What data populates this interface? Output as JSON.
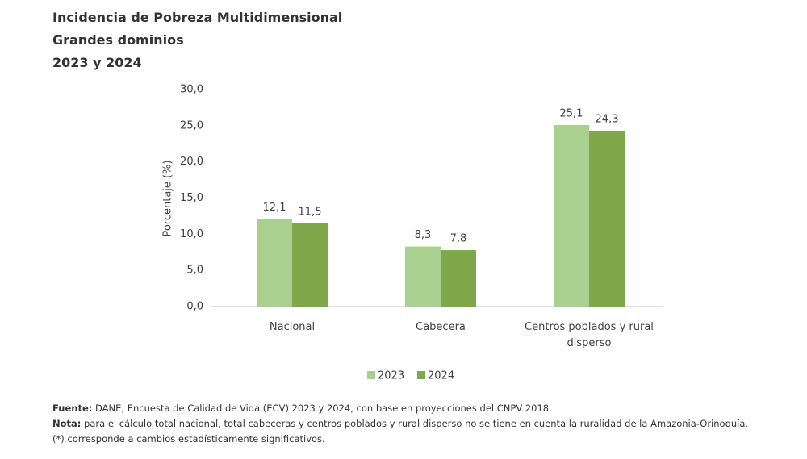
{
  "chart_data": {
    "type": "bar",
    "title": "Incidencia de Pobreza Multidimensional",
    "subtitle": [
      "Grandes dominios",
      "2023 y 2024"
    ],
    "ylabel": "Porcentaje (%)",
    "categories": [
      "Nacional",
      "Cabecera",
      "Centros poblados y rural disperso"
    ],
    "series": [
      {
        "name": "2023",
        "color": "#a9d08e",
        "values": [
          12.1,
          8.3,
          25.1
        ],
        "value_labels": [
          "12,1",
          "8,3",
          "25,1"
        ]
      },
      {
        "name": "2024",
        "color": "#7ea84a",
        "values": [
          11.5,
          7.8,
          24.3
        ],
        "value_labels": [
          "11,5",
          "7,8",
          "24,3"
        ]
      }
    ],
    "ylim": [
      0,
      30
    ],
    "yticks": [
      {
        "value": 0,
        "label": "0,0"
      },
      {
        "value": 5,
        "label": "5,0"
      },
      {
        "value": 10,
        "label": "10,0"
      },
      {
        "value": 15,
        "label": "15,0"
      },
      {
        "value": 20,
        "label": "20,0"
      },
      {
        "value": 25,
        "label": "25,0"
      },
      {
        "value": 30,
        "label": "30,0"
      }
    ],
    "grid": false,
    "legend": "bottom",
    "notes": [
      {
        "label": "Fuente:",
        "text": "DANE, Encuesta de Calidad de Vida (ECV) 2023 y 2024, con base en proyecciones del CNPV 2018."
      },
      {
        "label": "Nota:",
        "text": "para el cálculo total nacional, total cabeceras y centros poblados y rural disperso no se tiene en cuenta la ruralidad de la Amazonia-Orinoquía. (*) corresponde a cambios estadísticamente significativos."
      }
    ]
  }
}
